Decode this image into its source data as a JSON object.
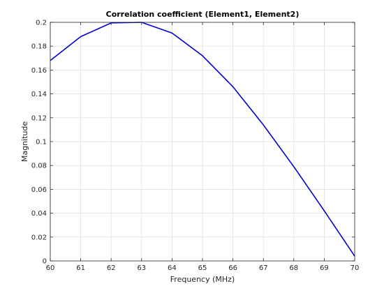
{
  "chart_data": {
    "type": "line",
    "title": "Correlation coefficient (Element1, Element2)",
    "xlabel": "Frequency (MHz)",
    "ylabel": "Magnitude",
    "xlim": [
      60,
      70
    ],
    "ylim": [
      0,
      0.2
    ],
    "xticks": [
      60,
      61,
      62,
      63,
      64,
      65,
      66,
      67,
      68,
      69,
      70
    ],
    "yticks": [
      0,
      0.02,
      0.04,
      0.06,
      0.08,
      0.1,
      0.12,
      0.14,
      0.16,
      0.18,
      0.2
    ],
    "ytick_labels": [
      "0",
      "0.02",
      "0.04",
      "0.06",
      "0.08",
      "0.1",
      "0.12",
      "0.14",
      "0.16",
      "0.18",
      "0.2"
    ],
    "grid": true,
    "series": [
      {
        "color": "#0000cc",
        "x": [
          60,
          61,
          62,
          63,
          64,
          65,
          66,
          67,
          68,
          69,
          70
        ],
        "y": [
          0.168,
          0.188,
          0.1995,
          0.2,
          0.191,
          0.172,
          0.146,
          0.114,
          0.079,
          0.042,
          0.004
        ]
      }
    ]
  }
}
